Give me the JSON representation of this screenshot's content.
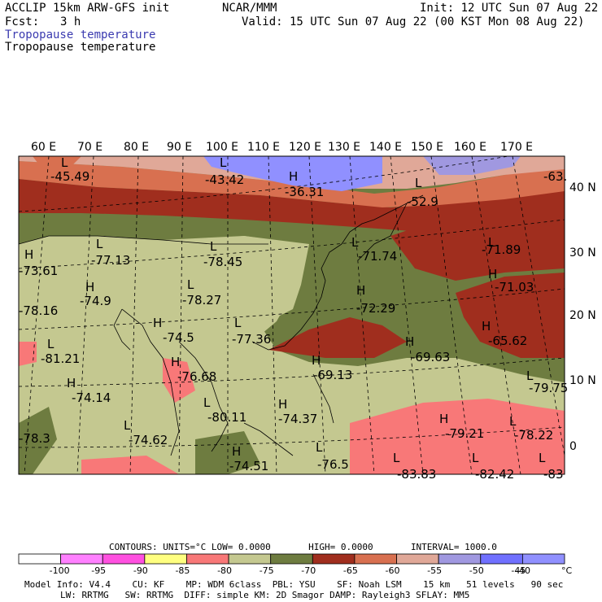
{
  "header": {
    "model": "ACCLIP 15km ARW-GFS init",
    "org": "NCAR/MMM",
    "init": "Init: 12 UTC Sun 07 Aug 22",
    "fcst_label": "Fcst:",
    "fcst_value": "3 h",
    "valid": "Valid: 15 UTC Sun 07 Aug 22 (00 KST Mon 08 Aug 22)",
    "field_title_1": "Tropopause temperature",
    "field_title_2": "Tropopause temperature"
  },
  "map": {
    "lon_labels": [
      "60 E",
      "70 E",
      "80 E",
      "90 E",
      "100 E",
      "110 E",
      "120 E",
      "130 E",
      "140 E",
      "150 E",
      "160 E",
      "170 E"
    ],
    "lat_labels": [
      "40 N",
      "30 N",
      "20 N",
      "10 N",
      "0"
    ],
    "extremes": [
      {
        "mark": "L",
        "value": "-45.49"
      },
      {
        "mark": "L",
        "value": "-43.42"
      },
      {
        "mark": "H",
        "value": "-36.31"
      },
      {
        "mark": "L",
        "value": "-52.9"
      },
      {
        "mark": "",
        "value": "-63."
      },
      {
        "mark": "L",
        "value": "-77.13"
      },
      {
        "mark": "L",
        "value": "-78.45"
      },
      {
        "mark": "L",
        "value": "-71.74"
      },
      {
        "mark": "L",
        "value": "-71.89"
      },
      {
        "mark": "H",
        "value": "-73.61"
      },
      {
        "mark": "H",
        "value": "-74.9"
      },
      {
        "mark": "L",
        "value": "-78.27"
      },
      {
        "mark": "H",
        "value": "-71.03"
      },
      {
        "mark": "H",
        "value": "-72.29"
      },
      {
        "mark": "",
        "value": "-78.16"
      },
      {
        "mark": "H",
        "value": "-74.5"
      },
      {
        "mark": "L",
        "value": "-77.36"
      },
      {
        "mark": "H",
        "value": "-65.62"
      },
      {
        "mark": "L",
        "value": "-81.21"
      },
      {
        "mark": "H",
        "value": "-69.63"
      },
      {
        "mark": "H",
        "value": "-76.68"
      },
      {
        "mark": "H",
        "value": "-69.13"
      },
      {
        "mark": "L",
        "value": "-79.75"
      },
      {
        "mark": "H",
        "value": "-74.14"
      },
      {
        "mark": "H",
        "value": "-74.37"
      },
      {
        "mark": "L",
        "value": "-80.11"
      },
      {
        "mark": "H",
        "value": "-79.21"
      },
      {
        "mark": "L",
        "value": "-74.62"
      },
      {
        "mark": "L",
        "value": "-78.22"
      },
      {
        "mark": "",
        "value": "-78.3"
      },
      {
        "mark": "H",
        "value": "-74.51"
      },
      {
        "mark": "L",
        "value": "-76.5"
      },
      {
        "mark": "L",
        "value": "-83.83"
      },
      {
        "mark": "L",
        "value": "-82.42"
      },
      {
        "mark": "L",
        "value": "-83"
      }
    ]
  },
  "contour_info": {
    "contours": "CONTOURS:",
    "units": "UNITS=°C",
    "low": "LOW=",
    "low_value": "0.0000",
    "high": "HIGH=",
    "high_value": "0.0000",
    "interval": "INTERVAL=",
    "interval_value": "1000.0"
  },
  "colorbar": {
    "colors": [
      "#ffffff",
      "#ff80ff",
      "#ff50e0",
      "#ffff80",
      "#f87878",
      "#c4c890",
      "#6e7c40",
      "#a02e1e",
      "#d87050",
      "#e0a898",
      "#a098e0",
      "#7070ff",
      "#9090ff"
    ],
    "labels": [
      "-100",
      "-95",
      "-90",
      "-85",
      "-80",
      "-75",
      "-70",
      "-65",
      "-60",
      "-55",
      "-50",
      "-45",
      "-40"
    ],
    "unit": "°C"
  },
  "footer": {
    "line1": [
      "Model Info: V4.4",
      "CU: KF",
      "MP: WDM 6class",
      "PBL: YSU",
      "SF: Noah LSM",
      "15 km",
      "51 levels",
      "90 sec"
    ],
    "line2": [
      "LW: RRTMG",
      "SW: RRTMG",
      "DIFF: simple",
      "KM: 2D Smagor",
      "DAMP: Rayleigh3",
      "SFLAY: MM5"
    ]
  }
}
